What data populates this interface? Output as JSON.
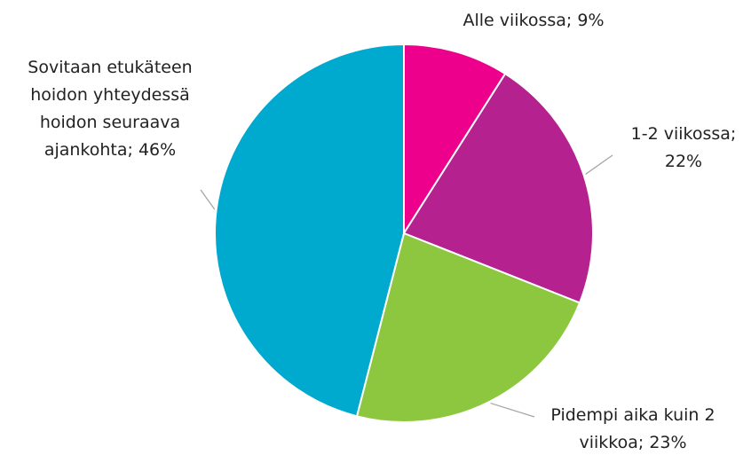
{
  "chart_data": {
    "type": "pie",
    "categories": [
      "Alle viikossa;",
      "1-2 viikossa;",
      "Pidempi aika kuin 2 viikkoa;",
      "Sovitaan etukäteen hoidon yhteydessä hoidon seuraava ajankohta;"
    ],
    "values": [
      9,
      22,
      23,
      46
    ],
    "value_labels": [
      "9%",
      "22%",
      "23%",
      "46%"
    ],
    "colors": [
      "#ec008c",
      "#b5218f",
      "#8dc63f",
      "#00a9ce"
    ]
  }
}
